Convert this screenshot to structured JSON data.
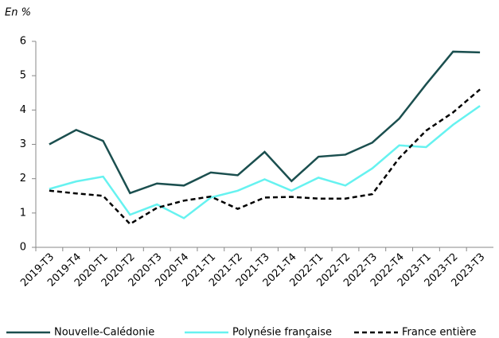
{
  "chart_data": {
    "type": "line",
    "y_label": "En %",
    "categories": [
      "2019-T3",
      "2019-T4",
      "2020-T1",
      "2020-T2",
      "2020-T3",
      "2020-T4",
      "2021-T1",
      "2021-T2",
      "2021-T3",
      "2021-T4",
      "2022-T1",
      "2022-T2",
      "2022-T3",
      "2022-T4",
      "2023-T1",
      "2023-T2",
      "2023-T3"
    ],
    "series": [
      {
        "name": "Nouvelle-Calédonie",
        "color": "#1b4f4f",
        "dash": "solid",
        "values": [
          3.0,
          3.42,
          3.1,
          1.58,
          1.86,
          1.8,
          2.18,
          2.1,
          2.78,
          1.93,
          2.64,
          2.7,
          3.05,
          3.75,
          4.75,
          5.7,
          5.68
        ]
      },
      {
        "name": "Polynésie française",
        "color": "#66f2f0",
        "dash": "solid",
        "values": [
          1.7,
          1.92,
          2.06,
          0.95,
          1.25,
          0.85,
          1.45,
          1.65,
          1.98,
          1.65,
          2.03,
          1.8,
          2.3,
          2.97,
          2.92,
          3.57,
          4.12
        ]
      },
      {
        "name": "France entière",
        "color": "#000000",
        "dash": "dashed",
        "values": [
          1.65,
          1.57,
          1.5,
          0.68,
          1.15,
          1.36,
          1.48,
          1.12,
          1.45,
          1.47,
          1.42,
          1.42,
          1.55,
          2.6,
          3.4,
          3.93,
          4.6
        ]
      }
    ],
    "ylim": [
      0,
      6
    ],
    "yticks": [
      0,
      1,
      2,
      3,
      4,
      5,
      6
    ],
    "grid": false
  }
}
